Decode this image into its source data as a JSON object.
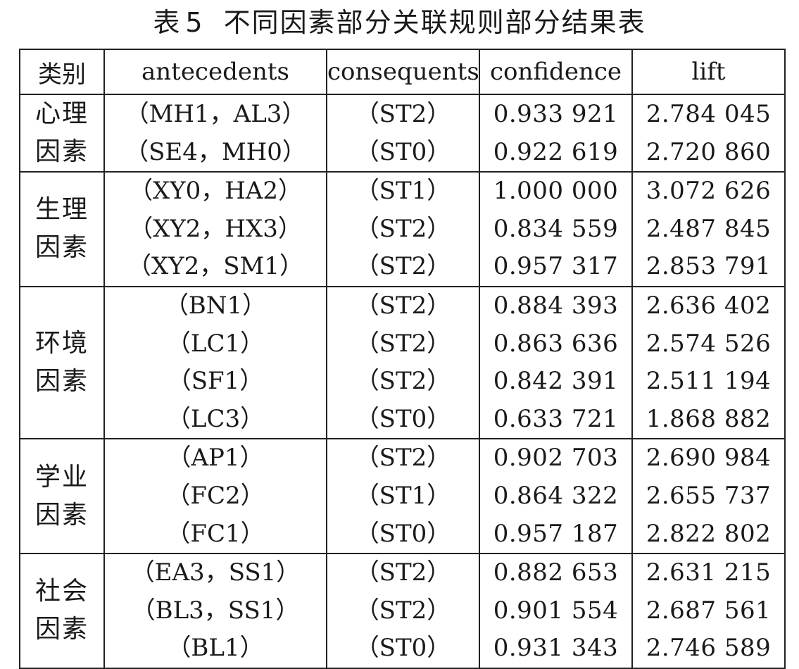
{
  "title": {
    "label": "表",
    "number": "5",
    "text": "不同因素部分关联规则部分结果表"
  },
  "headers": [
    "类别",
    "antecedents",
    "consequents",
    "confidence",
    "lift"
  ],
  "groups": [
    {
      "category_line1": "心理",
      "category_line2": "因素",
      "rows": [
        {
          "antecedents": "（MH1，AL3）",
          "consequents": "（ST2）",
          "confidence": "0.933 921",
          "lift": "2.784 045"
        },
        {
          "antecedents": "（SE4，MH0）",
          "consequents": "（ST0）",
          "confidence": "0.922 619",
          "lift": "2.720 860"
        }
      ]
    },
    {
      "category_line1": "生理",
      "category_line2": "因素",
      "rows": [
        {
          "antecedents": "（XY0，HA2）",
          "consequents": "（ST1）",
          "confidence": "1.000 000",
          "lift": "3.072 626"
        },
        {
          "antecedents": "（XY2，HX3）",
          "consequents": "（ST2）",
          "confidence": "0.834 559",
          "lift": "2.487 845"
        },
        {
          "antecedents": "（XY2，SM1）",
          "consequents": "（ST2）",
          "confidence": "0.957 317",
          "lift": "2.853 791"
        }
      ]
    },
    {
      "category_line1": "环境",
      "category_line2": "因素",
      "rows": [
        {
          "antecedents": "（BN1）",
          "consequents": "（ST2）",
          "confidence": "0.884 393",
          "lift": "2.636 402"
        },
        {
          "antecedents": "（LC1）",
          "consequents": "（ST2）",
          "confidence": "0.863 636",
          "lift": "2.574 526"
        },
        {
          "antecedents": "（SF1）",
          "consequents": "（ST2）",
          "confidence": "0.842 391",
          "lift": "2.511 194"
        },
        {
          "antecedents": "（LC3）",
          "consequents": "（ST0）",
          "confidence": "0.633 721",
          "lift": "1.868 882"
        }
      ]
    },
    {
      "category_line1": "学业",
      "category_line2": "因素",
      "rows": [
        {
          "antecedents": "（AP1）",
          "consequents": "（ST2）",
          "confidence": "0.902 703",
          "lift": "2.690 984"
        },
        {
          "antecedents": "（FC2）",
          "consequents": "（ST1）",
          "confidence": "0.864 322",
          "lift": "2.655 737"
        },
        {
          "antecedents": "（FC1）",
          "consequents": "（ST0）",
          "confidence": "0.957 187",
          "lift": "2.822 802"
        }
      ]
    },
    {
      "category_line1": "社会",
      "category_line2": "因素",
      "rows": [
        {
          "antecedents": "（EA3，SS1）",
          "consequents": "（ST2）",
          "confidence": "0.882 653",
          "lift": "2.631 215"
        },
        {
          "antecedents": "（BL3，SS1）",
          "consequents": "（ST2）",
          "confidence": "0.901 554",
          "lift": "2.687 561"
        },
        {
          "antecedents": "（BL1）",
          "consequents": "（ST0）",
          "confidence": "0.931 343",
          "lift": "2.746 589"
        }
      ]
    }
  ]
}
